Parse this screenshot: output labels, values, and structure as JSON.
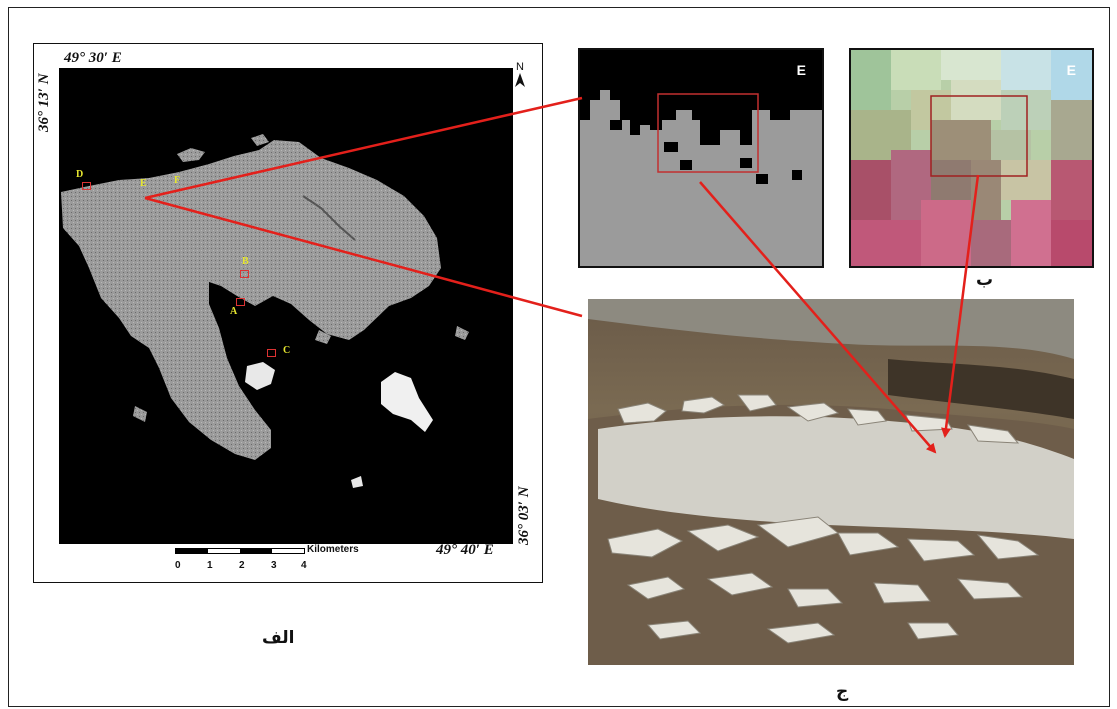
{
  "map": {
    "coord_top_lon": "49° 30′ E",
    "coord_left_lat": "36° 13′ N",
    "coord_right_lat": "36° 03′ N",
    "coord_bottom_lon": "49° 40′ E",
    "north_symbol": "N",
    "scale_unit": "Kilometers",
    "scale_ticks": [
      "0",
      "1",
      "2",
      "3",
      "4"
    ],
    "points": {
      "D": "D",
      "E": "E",
      "F": "F",
      "B": "B",
      "A": "A",
      "C": "C"
    },
    "caption": "الف"
  },
  "binary_zoom": {
    "label": "E"
  },
  "rgb_zoom": {
    "label": "E",
    "caption": "ب"
  },
  "field_photo": {
    "caption": "ج"
  },
  "colors": {
    "arrow": "#e3201b",
    "zoom_box": "#c23030",
    "mask": "#9b9b9b",
    "point_label": "#e6e630"
  }
}
